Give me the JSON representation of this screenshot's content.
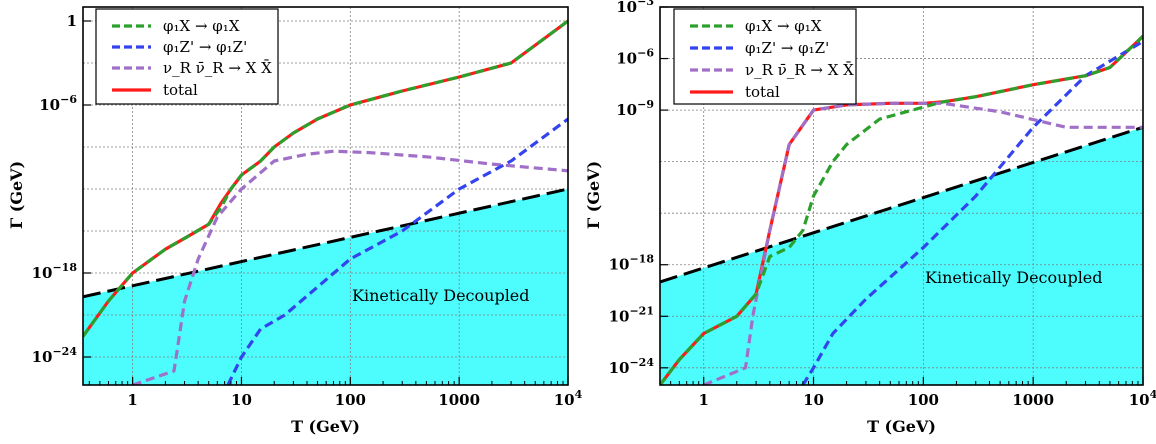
{
  "chart_data": [
    {
      "type": "line",
      "xlabel": "T (GeV)",
      "ylabel": "Γ (GeV)",
      "x_scale": "log",
      "y_scale": "log",
      "xlim": [
        0.35,
        10000
      ],
      "ylim": [
        1e-26,
        10
      ],
      "x_ticks": [
        {
          "v": 1,
          "label": "1"
        },
        {
          "v": 10,
          "label": "10"
        },
        {
          "v": 100,
          "label": "100"
        },
        {
          "v": 1000,
          "label": "1000"
        },
        {
          "v": 10000,
          "label": "10^4"
        }
      ],
      "y_ticks": [
        {
          "v": 1,
          "label": "1"
        },
        {
          "v": 1e-06,
          "label": "10^-6"
        },
        {
          "v": 1e-18,
          "label": "10^-18"
        },
        {
          "v": 1e-24,
          "label": "10^-24"
        }
      ],
      "grid": true,
      "legend_position": "top-left",
      "region": {
        "label": "Kinetically Decoupled",
        "color": "#4dfdfd",
        "boundary": [
          [
            0.35,
            2e-20
          ],
          [
            10000,
            1e-12
          ]
        ]
      },
      "boundary_line": {
        "color": "#000000",
        "style": "long-dash"
      },
      "series": [
        {
          "name": "φ₁X → φ₁X",
          "color": "#2ca02c",
          "style": "dashed",
          "points": [
            [
              0.35,
              3e-23
            ],
            [
              0.6,
              1e-20
            ],
            [
              1,
              1e-18
            ],
            [
              2,
              5e-17
            ],
            [
              3,
              3e-16
            ],
            [
              5,
              3e-15
            ],
            [
              6.5,
              5e-14
            ],
            [
              8,
              1e-12
            ],
            [
              10,
              1e-11
            ],
            [
              15,
              1e-10
            ],
            [
              20,
              1e-09
            ],
            [
              30,
              1e-08
            ],
            [
              50,
              1e-07
            ],
            [
              100,
              1e-06
            ],
            [
              300,
              1e-05
            ],
            [
              1000,
              0.0001
            ],
            [
              3000,
              0.001
            ],
            [
              10000,
              1
            ]
          ]
        },
        {
          "name": "φ₁Z' → φ₁Z'",
          "color": "#3344ee",
          "style": "dashed",
          "points": [
            [
              7.5,
              1e-26
            ],
            [
              10,
              1e-24
            ],
            [
              15,
              1e-22
            ],
            [
              25,
              1e-21
            ],
            [
              50,
              1e-19
            ],
            [
              100,
              1e-17
            ],
            [
              300,
              1e-15
            ],
            [
              1000,
              1e-12
            ],
            [
              3000,
              1e-10
            ],
            [
              10000,
              1e-07
            ]
          ]
        },
        {
          "name": "ν_R ν̄_R → X X̄",
          "color": "#a070c8",
          "style": "dashed",
          "points": [
            [
              1,
              1e-26
            ],
            [
              2.4,
              1e-25
            ],
            [
              3,
              1e-20
            ],
            [
              4,
              1e-17
            ],
            [
              6,
              1e-14
            ],
            [
              10,
              1e-12
            ],
            [
              20,
              1e-10
            ],
            [
              40,
              3e-10
            ],
            [
              70,
              5e-10
            ],
            [
              150,
              4e-10
            ],
            [
              500,
              2e-10
            ],
            [
              2000,
              6e-11
            ],
            [
              10000,
              2e-11
            ]
          ]
        },
        {
          "name": "total",
          "color": "#ff1a1a",
          "style": "solid",
          "points": [
            [
              0.35,
              3e-23
            ],
            [
              0.6,
              1e-20
            ],
            [
              1,
              1e-18
            ],
            [
              2,
              5e-17
            ],
            [
              3,
              3e-16
            ],
            [
              5,
              3e-15
            ],
            [
              6.5,
              1e-13
            ],
            [
              8,
              1e-12
            ],
            [
              10,
              1e-11
            ],
            [
              15,
              1e-10
            ],
            [
              20,
              1e-09
            ],
            [
              30,
              1e-08
            ],
            [
              50,
              1e-07
            ],
            [
              100,
              1e-06
            ],
            [
              300,
              1e-05
            ],
            [
              1000,
              0.0001
            ],
            [
              3000,
              0.001
            ],
            [
              10000,
              1
            ]
          ]
        }
      ]
    },
    {
      "type": "line",
      "xlabel": "T (GeV)",
      "ylabel": "Γ (GeV)",
      "x_scale": "log",
      "y_scale": "log",
      "xlim": [
        0.4,
        10000
      ],
      "ylim": [
        1e-25,
        0.001
      ],
      "x_ticks": [
        {
          "v": 1,
          "label": "1"
        },
        {
          "v": 10,
          "label": "10"
        },
        {
          "v": 100,
          "label": "100"
        },
        {
          "v": 1000,
          "label": "1000"
        },
        {
          "v": 10000,
          "label": "10^4"
        }
      ],
      "y_ticks": [
        {
          "v": 0.001,
          "label": "10^-3"
        },
        {
          "v": 1e-06,
          "label": "10^-6"
        },
        {
          "v": 1e-09,
          "label": "10^-9"
        },
        {
          "v": 1e-18,
          "label": "10^-18"
        },
        {
          "v": 1e-21,
          "label": "10^-21"
        },
        {
          "v": 1e-24,
          "label": "10^-24"
        }
      ],
      "grid": true,
      "legend_position": "top-left",
      "region": {
        "label": "Kinetically Decoupled",
        "color": "#4dfdfd",
        "boundary": [
          [
            0.4,
            1e-19
          ],
          [
            10000,
            1e-10
          ]
        ]
      },
      "boundary_line": {
        "color": "#000000",
        "style": "long-dash"
      },
      "series": [
        {
          "name": "φ₁X → φ₁X",
          "color": "#2ca02c",
          "style": "dashed",
          "points": [
            [
              0.4,
              1e-25
            ],
            [
              0.6,
              3e-24
            ],
            [
              1,
              1e-22
            ],
            [
              2,
              1e-21
            ],
            [
              3,
              2e-20
            ],
            [
              4,
              3e-18
            ],
            [
              6,
              1e-17
            ],
            [
              8,
              1e-16
            ],
            [
              10,
              1e-14
            ],
            [
              15,
              1e-12
            ],
            [
              20,
              1e-11
            ],
            [
              40,
              3e-10
            ],
            [
              100,
              1.5e-09
            ],
            [
              150,
              3e-09
            ],
            [
              300,
              6e-09
            ],
            [
              1000,
              3e-08
            ],
            [
              3000,
              1e-07
            ],
            [
              5000,
              3e-07
            ],
            [
              10000,
              2e-05
            ]
          ]
        },
        {
          "name": "φ₁Z' → φ₁Z'",
          "color": "#3344ee",
          "style": "dashed",
          "points": [
            [
              8,
              1e-25
            ],
            [
              10,
              1e-24
            ],
            [
              15,
              1e-22
            ],
            [
              30,
              1e-20
            ],
            [
              100,
              1e-17
            ],
            [
              300,
              1e-14
            ],
            [
              1000,
              1e-10
            ],
            [
              3000,
              1e-07
            ],
            [
              10000,
              1e-05
            ]
          ]
        },
        {
          "name": "ν_R ν̄_R → X X̄",
          "color": "#a070c8",
          "style": "dashed",
          "points": [
            [
              1,
              1e-25
            ],
            [
              2.4,
              1e-24
            ],
            [
              2.8,
              1e-21
            ],
            [
              3,
              1e-20
            ],
            [
              4,
              1e-16
            ],
            [
              6,
              1e-11
            ],
            [
              10,
              1e-09
            ],
            [
              20,
              2e-09
            ],
            [
              50,
              2.5e-09
            ],
            [
              150,
              2.5e-09
            ],
            [
              500,
              8e-10
            ],
            [
              2000,
              1e-10
            ],
            [
              10000,
              1e-10
            ]
          ]
        },
        {
          "name": "total",
          "color": "#ff1a1a",
          "style": "solid",
          "points": [
            [
              0.4,
              1e-25
            ],
            [
              0.6,
              3e-24
            ],
            [
              1,
              1e-22
            ],
            [
              2,
              1e-21
            ],
            [
              3,
              2e-20
            ],
            [
              4,
              1e-16
            ],
            [
              6,
              1e-11
            ],
            [
              10,
              1e-09
            ],
            [
              20,
              2e-09
            ],
            [
              50,
              2.5e-09
            ],
            [
              100,
              2.5e-09
            ],
            [
              150,
              3e-09
            ],
            [
              300,
              6e-09
            ],
            [
              1000,
              3e-08
            ],
            [
              3000,
              1e-07
            ],
            [
              5000,
              3e-07
            ],
            [
              10000,
              2e-05
            ]
          ]
        }
      ]
    }
  ]
}
